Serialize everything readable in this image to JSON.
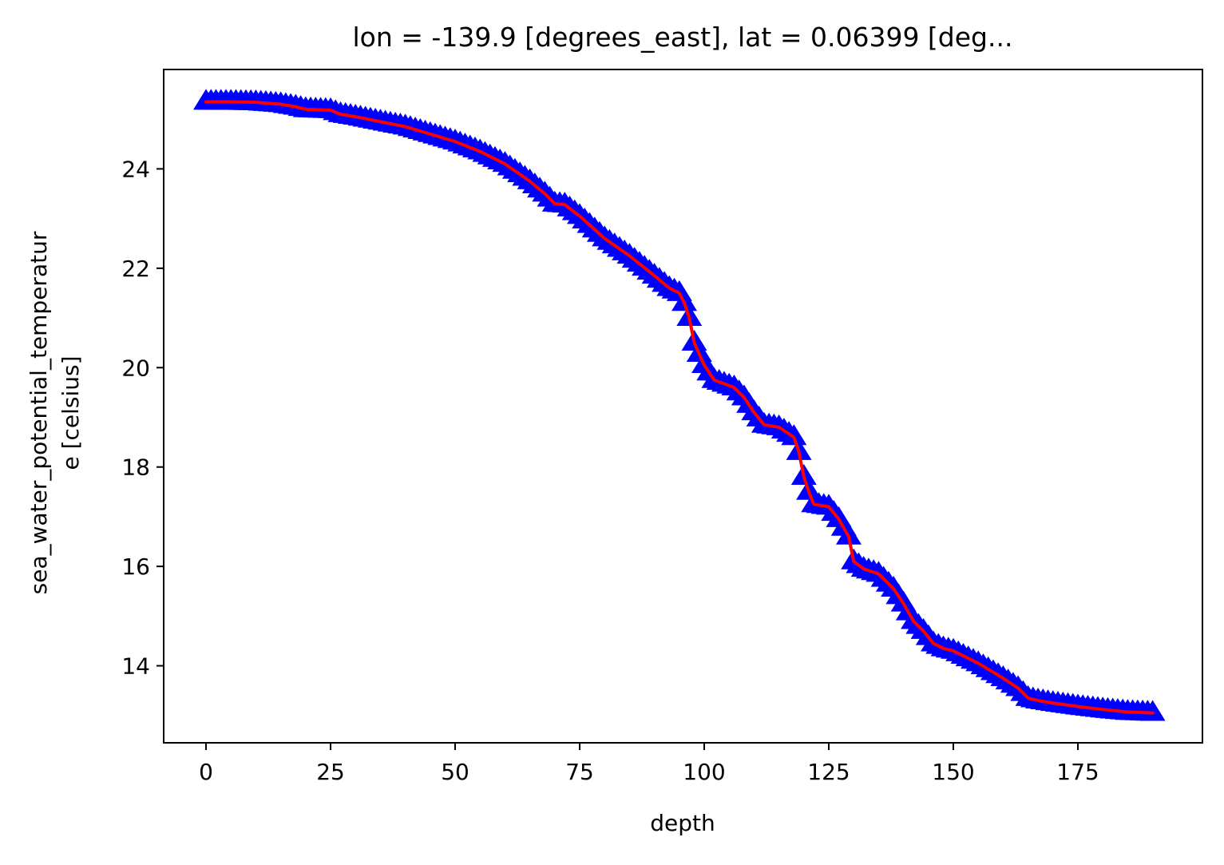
{
  "chart_data": {
    "type": "line",
    "title": "lon = -139.9 [degrees_east], lat = 0.06399 [deg...",
    "xlabel": "depth",
    "ylabel_lines": [
      "sea_water_potential_temperatur",
      "e [celsius]"
    ],
    "xlim": [
      -8.5,
      200
    ],
    "ylim": [
      12.45,
      26.0
    ],
    "xticks": [
      0,
      25,
      50,
      75,
      100,
      125,
      150,
      175
    ],
    "xtick_labels": [
      "0",
      "25",
      "50",
      "75",
      "100",
      "125",
      "150",
      "175"
    ],
    "yticks": [
      14,
      16,
      18,
      20,
      22,
      24
    ],
    "ytick_labels": [
      "14",
      "16",
      "18",
      "20",
      "22",
      "24"
    ],
    "grid": false,
    "legend": "none",
    "colors": {
      "markers": "#0000ff",
      "line": "#ff0000",
      "axes": "#000000"
    },
    "series": [
      {
        "marker": "triangle-up",
        "color": "#0000ff",
        "line": {
          "color": "#ff0000"
        },
        "x": [
          0,
          5,
          10,
          15,
          18,
          20,
          25,
          27,
          30,
          35,
          40,
          45,
          50,
          55,
          60,
          65,
          68,
          70,
          72,
          75,
          80,
          85,
          90,
          93,
          95,
          96,
          97,
          98,
          100,
          102,
          106,
          108,
          110,
          112,
          115,
          118,
          119,
          120,
          121,
          122,
          125,
          127,
          129,
          130,
          132,
          135,
          138,
          140,
          142,
          144,
          146,
          148,
          150,
          155,
          160,
          163,
          165,
          167,
          170,
          175,
          180,
          185,
          190
        ],
        "y": [
          25.35,
          25.35,
          25.34,
          25.3,
          25.25,
          25.2,
          25.18,
          25.1,
          25.05,
          24.95,
          24.85,
          24.7,
          24.55,
          24.35,
          24.1,
          23.75,
          23.5,
          23.3,
          23.28,
          23.05,
          22.6,
          22.25,
          21.85,
          21.6,
          21.5,
          21.3,
          21.0,
          20.5,
          20.05,
          19.75,
          19.6,
          19.4,
          19.1,
          18.85,
          18.8,
          18.6,
          18.3,
          17.8,
          17.5,
          17.25,
          17.2,
          16.95,
          16.6,
          16.1,
          15.95,
          15.85,
          15.55,
          15.25,
          14.9,
          14.7,
          14.45,
          14.35,
          14.3,
          14.05,
          13.75,
          13.55,
          13.35,
          13.3,
          13.25,
          13.18,
          13.12,
          13.07,
          13.05
        ]
      }
    ]
  }
}
